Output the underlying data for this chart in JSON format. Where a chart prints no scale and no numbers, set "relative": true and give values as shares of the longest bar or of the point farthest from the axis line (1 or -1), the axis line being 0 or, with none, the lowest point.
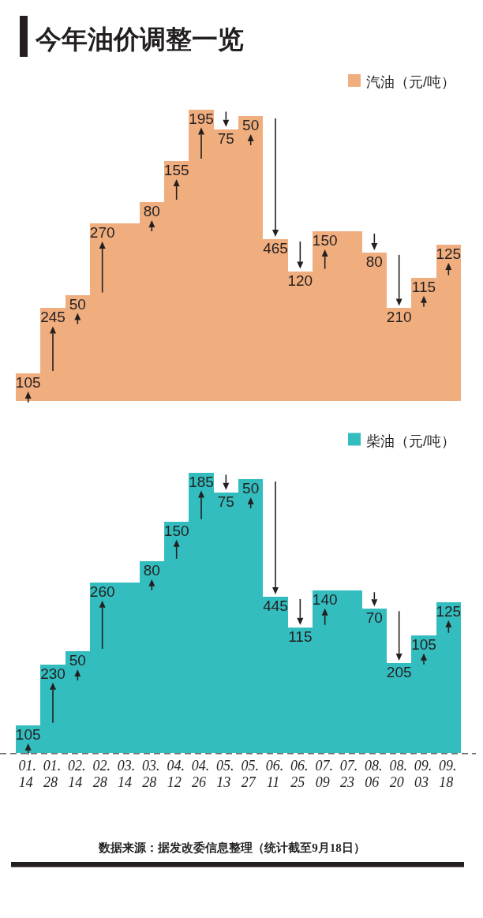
{
  "chart_data": [
    {
      "type": "bar",
      "title": "今年油价调整一览",
      "relative": true,
      "legend": "top right",
      "tick_labels": false,
      "categories": [
        "01.14",
        "01.28",
        "02.14",
        "02.28",
        "03.14",
        "03.28",
        "04.12",
        "04.26",
        "05.13",
        "05.27",
        "06.11",
        "06.25",
        "07.09",
        "07.23",
        "08.06",
        "08.20",
        "09.03",
        "09.18"
      ],
      "series": [
        {
          "name": "汽油（元/吨）",
          "color": "#f0ae7f",
          "values": [
            0.095,
            0.318,
            0.364,
            0.609,
            0.609,
            0.682,
            0.823,
            1,
            0.932,
            0.977,
            0.555,
            0.445,
            0.582,
            0.582,
            0.509,
            0.318,
            0.423,
            0.536
          ]
        }
      ],
      "annotations": [
        {
          "text": "105",
          "x": "01.14",
          "y": 0.095
        },
        {
          "text": "245",
          "x": "01.28",
          "y": 0.318
        },
        {
          "text": "50",
          "x": "02.14",
          "y": 0.364
        },
        {
          "text": "270",
          "x": "02.28",
          "y": 0.609
        },
        {
          "text": "80",
          "x": "03.28",
          "y": 0.682
        },
        {
          "text": "155",
          "x": "04.12",
          "y": 0.823
        },
        {
          "text": "195",
          "x": "04.26",
          "y": 1
        },
        {
          "text": "75",
          "x": "05.13",
          "y": 0.932
        },
        {
          "text": "50",
          "x": "05.27",
          "y": 0.977
        },
        {
          "text": "465",
          "x": "06.11",
          "y": 0.555
        },
        {
          "text": "120",
          "x": "06.25",
          "y": 0.445
        },
        {
          "text": "150",
          "x": "07.09",
          "y": 0.582
        },
        {
          "text": "80",
          "x": "08.06",
          "y": 0.509
        },
        {
          "text": "210",
          "x": "08.20",
          "y": 0.318
        },
        {
          "text": "115",
          "x": "09.03",
          "y": 0.423
        },
        {
          "text": "125",
          "x": "09.18",
          "y": 0.536
        }
      ]
    },
    {
      "type": "bar",
      "relative": true,
      "legend": "top right",
      "tick_labels": "x",
      "categories": [
        "01.14",
        "01.28",
        "02.14",
        "02.28",
        "03.14",
        "03.28",
        "04.12",
        "04.26",
        "05.13",
        "05.27",
        "06.11",
        "06.25",
        "07.09",
        "07.23",
        "08.06",
        "08.20",
        "09.03",
        "09.18"
      ],
      "series": [
        {
          "name": "柴油（元/吨）",
          "color": "#34bdbf",
          "values": [
            0.099,
            0.316,
            0.363,
            0.608,
            0.608,
            0.684,
            0.825,
            1,
            0.929,
            0.976,
            0.557,
            0.448,
            0.58,
            0.58,
            0.514,
            0.321,
            0.42,
            0.538
          ]
        }
      ],
      "annotations": [
        {
          "text": "105",
          "x": "01.14",
          "y": 0.099
        },
        {
          "text": "230",
          "x": "01.28",
          "y": 0.316
        },
        {
          "text": "50",
          "x": "02.14",
          "y": 0.363
        },
        {
          "text": "260",
          "x": "02.28",
          "y": 0.608
        },
        {
          "text": "80",
          "x": "03.28",
          "y": 0.684
        },
        {
          "text": "150",
          "x": "04.12",
          "y": 0.825
        },
        {
          "text": "185",
          "x": "04.26",
          "y": 1
        },
        {
          "text": "75",
          "x": "05.13",
          "y": 0.929
        },
        {
          "text": "50",
          "x": "05.27",
          "y": 0.976
        },
        {
          "text": "445",
          "x": "06.11",
          "y": 0.557
        },
        {
          "text": "115",
          "x": "06.25",
          "y": 0.448
        },
        {
          "text": "140",
          "x": "07.09",
          "y": 0.58
        },
        {
          "text": "70",
          "x": "08.06",
          "y": 0.514
        },
        {
          "text": "205",
          "x": "08.20",
          "y": 0.321
        },
        {
          "text": "105",
          "x": "09.03",
          "y": 0.42
        },
        {
          "text": "125",
          "x": "09.18",
          "y": 0.538
        },
        "数据来源：据发改委信息整理（统计截至9月18日）"
      ]
    }
  ]
}
